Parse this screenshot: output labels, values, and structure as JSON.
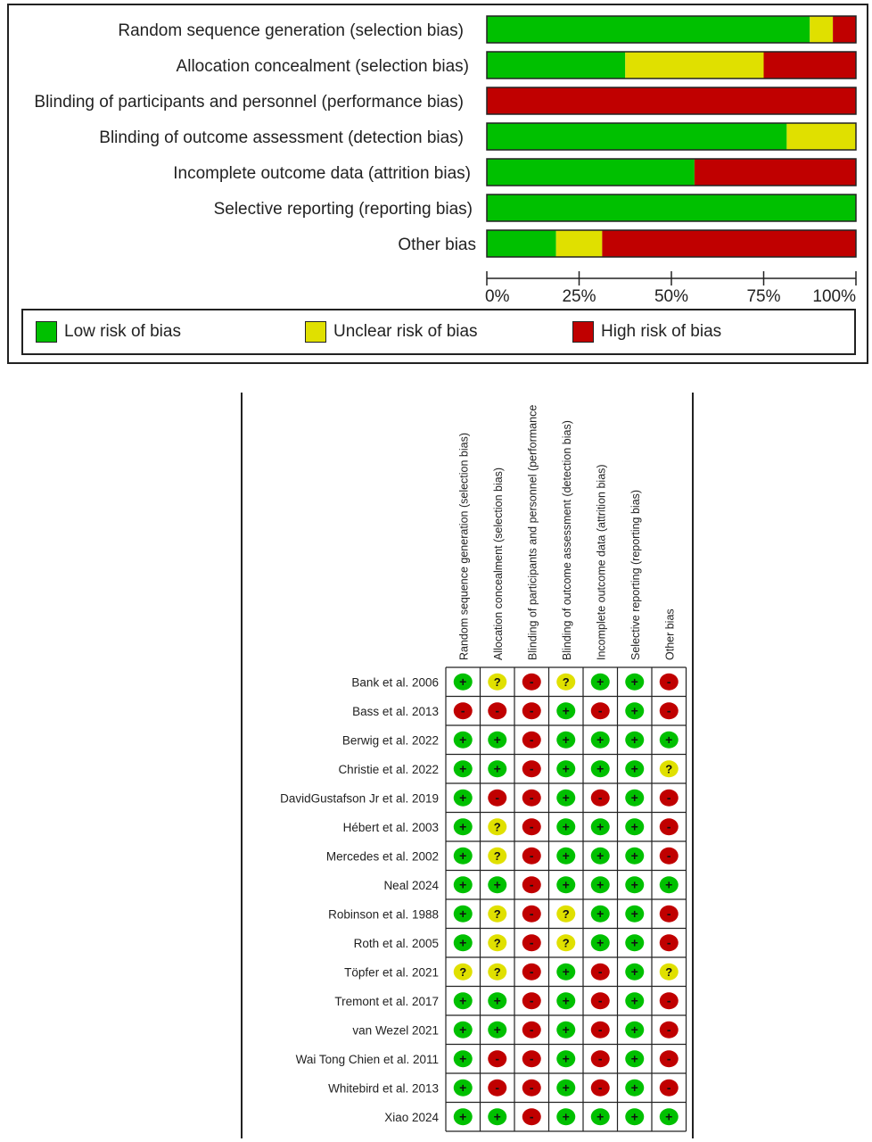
{
  "colors": {
    "low": "#00c000",
    "unclear": "#e0e000",
    "high": "#c00000"
  },
  "legend": [
    {
      "key": "low",
      "label": "Low risk of bias"
    },
    {
      "key": "unclear",
      "label": "Unclear risk of bias"
    },
    {
      "key": "high",
      "label": "High risk of bias"
    }
  ],
  "chart_data": [
    {
      "type": "bar",
      "orientation": "horizontal-stacked-percent",
      "categories": [
        "Random sequence generation (selection bias)",
        "Allocation concealment (selection bias)",
        "Blinding of participants and personnel (performance bias)",
        "Blinding of outcome assessment (detection bias)",
        "Incomplete outcome data (attrition bias)",
        "Selective reporting (reporting bias)",
        "Other bias"
      ],
      "series": [
        {
          "name": "Low risk of bias",
          "values": [
            87.5,
            37.5,
            0,
            81.25,
            56.25,
            100,
            18.75
          ]
        },
        {
          "name": "Unclear risk of bias",
          "values": [
            6.25,
            37.5,
            0,
            18.75,
            0,
            0,
            12.5
          ]
        },
        {
          "name": "High risk of bias",
          "values": [
            6.25,
            25,
            100,
            0,
            43.75,
            0,
            68.75
          ]
        }
      ],
      "xlim": [
        0,
        100
      ],
      "xticks": [
        "0%",
        "25%",
        "50%",
        "75%",
        "100%"
      ],
      "legend_position": "bottom"
    },
    {
      "type": "table",
      "columns": [
        "Random sequence generation (selection bias)",
        "Allocation concealment (selection bias)",
        "Blinding of participants and personnel (performance",
        "Blinding of outcome assessment (detection bias)",
        "Incomplete outcome data (attrition bias)",
        "Selective reporting (reporting bias)",
        "Other bias"
      ],
      "rows": [
        {
          "study": "Bank et al. 2006",
          "ratings": [
            "+",
            "?",
            "-",
            "?",
            "+",
            "+",
            "-"
          ]
        },
        {
          "study": "Bass et al. 2013",
          "ratings": [
            "-",
            "-",
            "-",
            "+",
            "-",
            "+",
            "-"
          ]
        },
        {
          "study": "Berwig et al. 2022",
          "ratings": [
            "+",
            "+",
            "-",
            "+",
            "+",
            "+",
            "+"
          ]
        },
        {
          "study": "Christie et al. 2022",
          "ratings": [
            "+",
            "+",
            "-",
            "+",
            "+",
            "+",
            "?"
          ]
        },
        {
          "study": "DavidGustafson Jr et al. 2019",
          "ratings": [
            "+",
            "-",
            "-",
            "+",
            "-",
            "+",
            "-"
          ]
        },
        {
          "study": "Hébert et al. 2003",
          "ratings": [
            "+",
            "?",
            "-",
            "+",
            "+",
            "+",
            "-"
          ]
        },
        {
          "study": "Mercedes et al. 2002",
          "ratings": [
            "+",
            "?",
            "-",
            "+",
            "+",
            "+",
            "-"
          ]
        },
        {
          "study": "Neal 2024",
          "ratings": [
            "+",
            "+",
            "-",
            "+",
            "+",
            "+",
            "+"
          ]
        },
        {
          "study": "Robinson et al. 1988",
          "ratings": [
            "+",
            "?",
            "-",
            "?",
            "+",
            "+",
            "-"
          ]
        },
        {
          "study": "Roth et al. 2005",
          "ratings": [
            "+",
            "?",
            "-",
            "?",
            "+",
            "+",
            "-"
          ]
        },
        {
          "study": "Töpfer et al. 2021",
          "ratings": [
            "?",
            "?",
            "-",
            "+",
            "-",
            "+",
            "?"
          ]
        },
        {
          "study": "Tremont et al. 2017",
          "ratings": [
            "+",
            "+",
            "-",
            "+",
            "-",
            "+",
            "-"
          ]
        },
        {
          "study": "van Wezel 2021",
          "ratings": [
            "+",
            "+",
            "-",
            "+",
            "-",
            "+",
            "-"
          ]
        },
        {
          "study": "Wai Tong Chien et al. 2011",
          "ratings": [
            "+",
            "-",
            "-",
            "+",
            "-",
            "+",
            "-"
          ]
        },
        {
          "study": "Whitebird et al. 2013",
          "ratings": [
            "+",
            "-",
            "-",
            "+",
            "-",
            "+",
            "-"
          ]
        },
        {
          "study": "Xiao 2024",
          "ratings": [
            "+",
            "+",
            "-",
            "+",
            "+",
            "+",
            "+"
          ]
        }
      ]
    }
  ]
}
